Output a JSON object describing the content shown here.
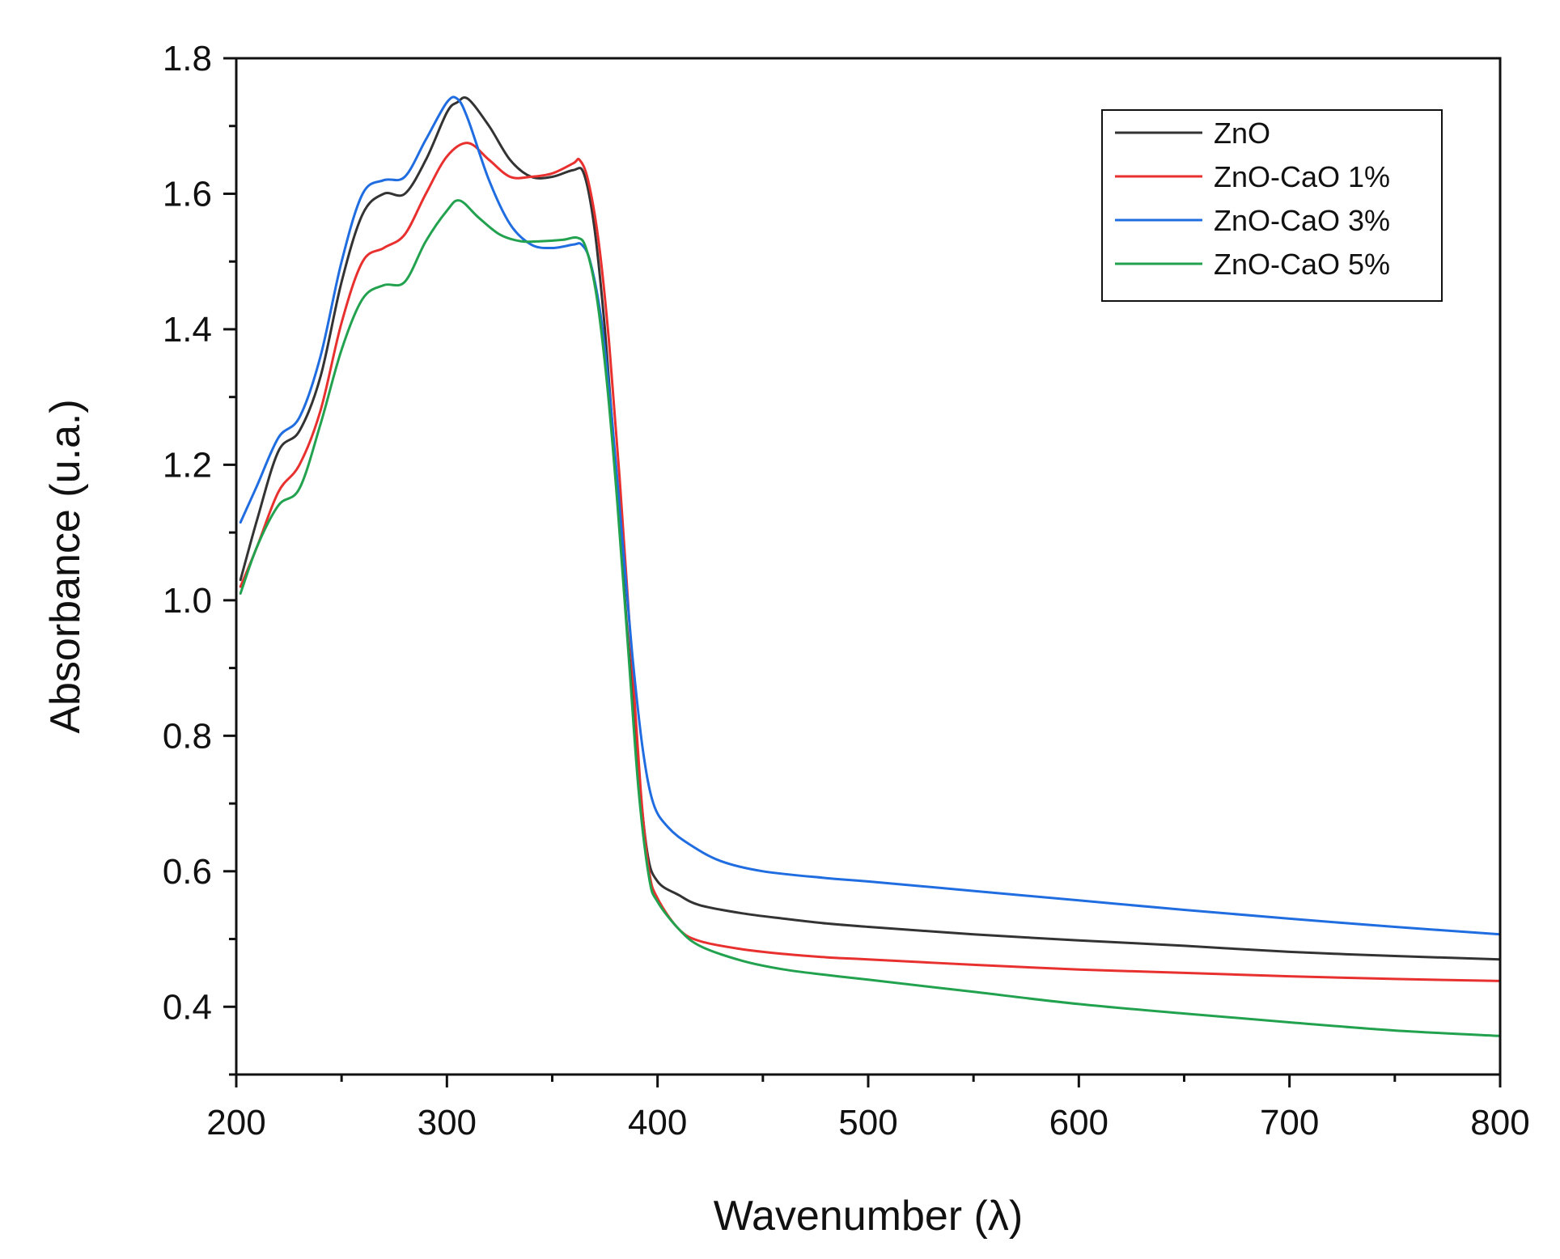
{
  "chart_data": {
    "type": "line",
    "title": "",
    "xlabel": "Wavenumber (λ)",
    "ylabel": "Absorbance (u.a.)",
    "xlim": [
      200,
      800
    ],
    "ylim": [
      0.3,
      1.8
    ],
    "xticks": [
      "200",
      "300",
      "400",
      "500",
      "600",
      "700",
      "800"
    ],
    "yticks": [
      "0.4",
      "0.6",
      "0.8",
      "1.0",
      "1.2",
      "1.4",
      "1.6",
      "1.8"
    ],
    "legend_position": "top-right",
    "series": [
      {
        "name": "ZnO",
        "color": "#333333",
        "points": [
          [
            202,
            1.03
          ],
          [
            210,
            1.12
          ],
          [
            220,
            1.22
          ],
          [
            230,
            1.25
          ],
          [
            240,
            1.33
          ],
          [
            250,
            1.47
          ],
          [
            260,
            1.57
          ],
          [
            270,
            1.6
          ],
          [
            280,
            1.6
          ],
          [
            290,
            1.65
          ],
          [
            300,
            1.72
          ],
          [
            305,
            1.735
          ],
          [
            310,
            1.74
          ],
          [
            320,
            1.7
          ],
          [
            330,
            1.65
          ],
          [
            340,
            1.625
          ],
          [
            350,
            1.625
          ],
          [
            360,
            1.635
          ],
          [
            365,
            1.63
          ],
          [
            370,
            1.55
          ],
          [
            375,
            1.4
          ],
          [
            380,
            1.2
          ],
          [
            385,
            0.98
          ],
          [
            390,
            0.78
          ],
          [
            395,
            0.63
          ],
          [
            400,
            0.585
          ],
          [
            410,
            0.565
          ],
          [
            420,
            0.55
          ],
          [
            440,
            0.538
          ],
          [
            460,
            0.53
          ],
          [
            480,
            0.523
          ],
          [
            500,
            0.518
          ],
          [
            550,
            0.507
          ],
          [
            600,
            0.498
          ],
          [
            650,
            0.49
          ],
          [
            700,
            0.481
          ],
          [
            750,
            0.475
          ],
          [
            800,
            0.47
          ]
        ]
      },
      {
        "name": "ZnO-CaO 1%",
        "color": "#e8312f",
        "points": [
          [
            202,
            1.02
          ],
          [
            210,
            1.08
          ],
          [
            220,
            1.16
          ],
          [
            230,
            1.2
          ],
          [
            240,
            1.28
          ],
          [
            250,
            1.41
          ],
          [
            260,
            1.5
          ],
          [
            270,
            1.52
          ],
          [
            280,
            1.54
          ],
          [
            290,
            1.6
          ],
          [
            300,
            1.655
          ],
          [
            310,
            1.675
          ],
          [
            320,
            1.65
          ],
          [
            330,
            1.625
          ],
          [
            340,
            1.625
          ],
          [
            350,
            1.63
          ],
          [
            360,
            1.645
          ],
          [
            363,
            1.65
          ],
          [
            367,
            1.62
          ],
          [
            372,
            1.53
          ],
          [
            377,
            1.38
          ],
          [
            382,
            1.18
          ],
          [
            387,
            0.95
          ],
          [
            392,
            0.72
          ],
          [
            396,
            0.6
          ],
          [
            400,
            0.56
          ],
          [
            410,
            0.515
          ],
          [
            420,
            0.497
          ],
          [
            440,
            0.485
          ],
          [
            460,
            0.478
          ],
          [
            480,
            0.473
          ],
          [
            500,
            0.47
          ],
          [
            550,
            0.462
          ],
          [
            600,
            0.455
          ],
          [
            650,
            0.45
          ],
          [
            700,
            0.445
          ],
          [
            750,
            0.441
          ],
          [
            800,
            0.438
          ]
        ]
      },
      {
        "name": "ZnO-CaO 3%",
        "color": "#1f6de0",
        "points": [
          [
            202,
            1.115
          ],
          [
            210,
            1.17
          ],
          [
            220,
            1.24
          ],
          [
            230,
            1.27
          ],
          [
            240,
            1.36
          ],
          [
            250,
            1.5
          ],
          [
            260,
            1.6
          ],
          [
            270,
            1.62
          ],
          [
            280,
            1.625
          ],
          [
            290,
            1.68
          ],
          [
            300,
            1.735
          ],
          [
            305,
            1.74
          ],
          [
            310,
            1.71
          ],
          [
            320,
            1.62
          ],
          [
            330,
            1.555
          ],
          [
            340,
            1.525
          ],
          [
            350,
            1.52
          ],
          [
            360,
            1.525
          ],
          [
            364,
            1.525
          ],
          [
            368,
            1.5
          ],
          [
            373,
            1.42
          ],
          [
            378,
            1.28
          ],
          [
            383,
            1.1
          ],
          [
            388,
            0.92
          ],
          [
            393,
            0.78
          ],
          [
            398,
            0.7
          ],
          [
            405,
            0.665
          ],
          [
            415,
            0.64
          ],
          [
            430,
            0.615
          ],
          [
            450,
            0.6
          ],
          [
            480,
            0.59
          ],
          [
            500,
            0.585
          ],
          [
            550,
            0.571
          ],
          [
            600,
            0.557
          ],
          [
            650,
            0.543
          ],
          [
            700,
            0.53
          ],
          [
            750,
            0.518
          ],
          [
            800,
            0.507
          ]
        ]
      },
      {
        "name": "ZnO-CaO 5%",
        "color": "#22a24f",
        "points": [
          [
            202,
            1.01
          ],
          [
            210,
            1.08
          ],
          [
            220,
            1.14
          ],
          [
            230,
            1.165
          ],
          [
            240,
            1.26
          ],
          [
            250,
            1.37
          ],
          [
            260,
            1.445
          ],
          [
            270,
            1.465
          ],
          [
            280,
            1.47
          ],
          [
            290,
            1.53
          ],
          [
            300,
            1.575
          ],
          [
            306,
            1.59
          ],
          [
            315,
            1.565
          ],
          [
            325,
            1.54
          ],
          [
            335,
            1.53
          ],
          [
            345,
            1.53
          ],
          [
            355,
            1.532
          ],
          [
            362,
            1.535
          ],
          [
            366,
            1.52
          ],
          [
            371,
            1.45
          ],
          [
            376,
            1.32
          ],
          [
            381,
            1.14
          ],
          [
            386,
            0.93
          ],
          [
            391,
            0.72
          ],
          [
            396,
            0.59
          ],
          [
            400,
            0.555
          ],
          [
            410,
            0.515
          ],
          [
            420,
            0.49
          ],
          [
            440,
            0.468
          ],
          [
            460,
            0.455
          ],
          [
            480,
            0.447
          ],
          [
            500,
            0.44
          ],
          [
            550,
            0.422
          ],
          [
            600,
            0.404
          ],
          [
            650,
            0.39
          ],
          [
            700,
            0.377
          ],
          [
            750,
            0.365
          ],
          [
            800,
            0.357
          ]
        ]
      }
    ]
  }
}
